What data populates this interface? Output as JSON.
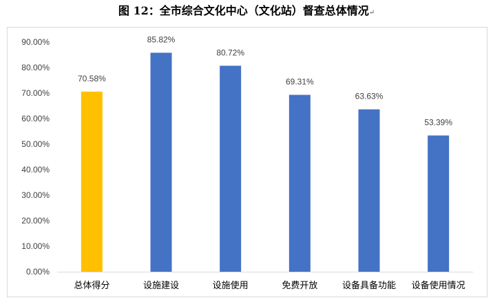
{
  "title": "图 12：全市综合文化中心（文化站）督查总体情况",
  "paragraph_mark": "↵",
  "chart_data": {
    "type": "bar",
    "title": "图 12：全市综合文化中心（文化站）督查总体情况",
    "categories": [
      "总体得分",
      "设施建设",
      "设施使用",
      "免费开放",
      "设备具备功能",
      "设备使用情况"
    ],
    "values": [
      70.58,
      85.82,
      80.72,
      69.31,
      63.63,
      53.39
    ],
    "data_labels": [
      "70.58%",
      "85.82%",
      "80.72%",
      "69.31%",
      "63.63%",
      "53.39%"
    ],
    "colors": [
      "#FFC000",
      "#4472C4",
      "#4472C4",
      "#4472C4",
      "#4472C4",
      "#4472C4"
    ],
    "ylim": [
      0,
      90
    ],
    "yticks": [
      0,
      10,
      20,
      30,
      40,
      50,
      60,
      70,
      80,
      90
    ],
    "ytick_labels": [
      "0.00%",
      "10.00%",
      "20.00%",
      "30.00%",
      "40.00%",
      "50.00%",
      "60.00%",
      "70.00%",
      "80.00%",
      "90.00%"
    ],
    "xlabel": "",
    "ylabel": "",
    "grid": false,
    "legend": "none",
    "axis_color": "#d9d9d9"
  }
}
